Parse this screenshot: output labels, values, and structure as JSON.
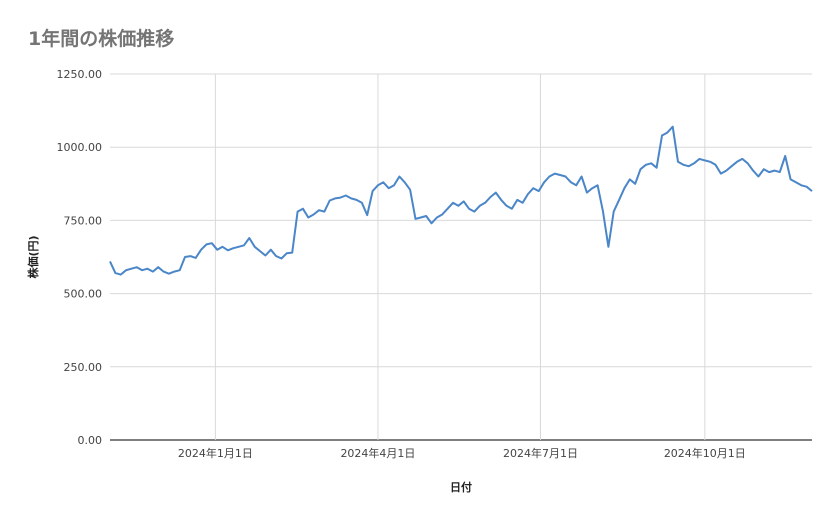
{
  "chart_data": {
    "type": "line",
    "title": "1年間の株価推移",
    "xlabel": "日付",
    "ylabel": "株価(円)",
    "ylim": [
      0,
      1250
    ],
    "yticks": [
      "0.00",
      "250.00",
      "500.00",
      "750.00",
      "1000.00",
      "1250.00"
    ],
    "yticks_values": [
      0,
      250,
      500,
      750,
      1000,
      1250
    ],
    "xrange": [
      "2023-11-03",
      "2024-11-30"
    ],
    "xticks": [
      {
        "label": "2024年1月1日",
        "date": "2024-01-01"
      },
      {
        "label": "2024年4月1日",
        "date": "2024-04-01"
      },
      {
        "label": "2024年7月1日",
        "date": "2024-07-01"
      },
      {
        "label": "2024年10月1日",
        "date": "2024-10-01"
      }
    ],
    "grid": true,
    "line_color": "#4a86c8",
    "x": [
      "2023-11-03",
      "2023-11-06",
      "2023-11-09",
      "2023-11-12",
      "2023-11-15",
      "2023-11-18",
      "2023-11-21",
      "2023-11-24",
      "2023-11-27",
      "2023-11-30",
      "2023-12-03",
      "2023-12-06",
      "2023-12-09",
      "2023-12-12",
      "2023-12-15",
      "2023-12-18",
      "2023-12-21",
      "2023-12-24",
      "2023-12-27",
      "2023-12-30",
      "2024-01-02",
      "2024-01-05",
      "2024-01-08",
      "2024-01-11",
      "2024-01-14",
      "2024-01-17",
      "2024-01-20",
      "2024-01-23",
      "2024-01-26",
      "2024-01-29",
      "2024-02-01",
      "2024-02-04",
      "2024-02-07",
      "2024-02-10",
      "2024-02-13",
      "2024-02-16",
      "2024-02-19",
      "2024-02-22",
      "2024-02-25",
      "2024-02-28",
      "2024-03-02",
      "2024-03-05",
      "2024-03-08",
      "2024-03-11",
      "2024-03-14",
      "2024-03-17",
      "2024-03-20",
      "2024-03-23",
      "2024-03-26",
      "2024-03-29",
      "2024-04-01",
      "2024-04-04",
      "2024-04-07",
      "2024-04-10",
      "2024-04-13",
      "2024-04-16",
      "2024-04-19",
      "2024-04-22",
      "2024-04-25",
      "2024-04-28",
      "2024-05-01",
      "2024-05-04",
      "2024-05-07",
      "2024-05-10",
      "2024-05-13",
      "2024-05-16",
      "2024-05-19",
      "2024-05-22",
      "2024-05-25",
      "2024-05-28",
      "2024-05-31",
      "2024-06-03",
      "2024-06-06",
      "2024-06-09",
      "2024-06-12",
      "2024-06-15",
      "2024-06-18",
      "2024-06-21",
      "2024-06-24",
      "2024-06-27",
      "2024-06-30",
      "2024-07-03",
      "2024-07-06",
      "2024-07-09",
      "2024-07-12",
      "2024-07-15",
      "2024-07-18",
      "2024-07-21",
      "2024-07-24",
      "2024-07-27",
      "2024-07-30",
      "2024-08-02",
      "2024-08-05",
      "2024-08-08",
      "2024-08-11",
      "2024-08-14",
      "2024-08-17",
      "2024-08-20",
      "2024-08-23",
      "2024-08-26",
      "2024-08-29",
      "2024-09-01",
      "2024-09-04",
      "2024-09-07",
      "2024-09-10",
      "2024-09-13",
      "2024-09-16",
      "2024-09-19",
      "2024-09-22",
      "2024-09-25",
      "2024-09-28",
      "2024-10-01",
      "2024-10-04",
      "2024-10-07",
      "2024-10-10",
      "2024-10-13",
      "2024-10-16",
      "2024-10-19",
      "2024-10-22",
      "2024-10-25",
      "2024-10-28",
      "2024-10-31",
      "2024-11-03",
      "2024-11-06",
      "2024-11-09",
      "2024-11-12",
      "2024-11-15",
      "2024-11-18",
      "2024-11-21",
      "2024-11-24",
      "2024-11-27",
      "2024-11-30"
    ],
    "values": [
      610,
      570,
      565,
      580,
      585,
      590,
      580,
      585,
      575,
      590,
      575,
      568,
      575,
      580,
      625,
      628,
      622,
      650,
      668,
      672,
      650,
      660,
      648,
      655,
      660,
      665,
      690,
      660,
      645,
      630,
      650,
      628,
      620,
      638,
      640,
      780,
      790,
      760,
      770,
      785,
      780,
      818,
      825,
      828,
      835,
      825,
      820,
      810,
      768,
      850,
      870,
      880,
      860,
      870,
      900,
      880,
      855,
      755,
      760,
      765,
      740,
      760,
      770,
      790,
      810,
      800,
      815,
      790,
      780,
      800,
      810,
      830,
      845,
      820,
      800,
      790,
      820,
      810,
      840,
      860,
      850,
      880,
      900,
      910,
      905,
      900,
      880,
      870,
      900,
      845,
      860,
      870,
      780,
      660,
      780,
      820,
      860,
      890,
      875,
      925,
      940,
      945,
      930,
      1040,
      1050,
      1070,
      950,
      940,
      935,
      945,
      960,
      955,
      950,
      940,
      910,
      920,
      935,
      950,
      960,
      945,
      920,
      900,
      925,
      915,
      920,
      915,
      970,
      890,
      880,
      870,
      865,
      850
    ],
    "series": [
      {
        "name": "",
        "color": "#4a86c8"
      }
    ]
  }
}
